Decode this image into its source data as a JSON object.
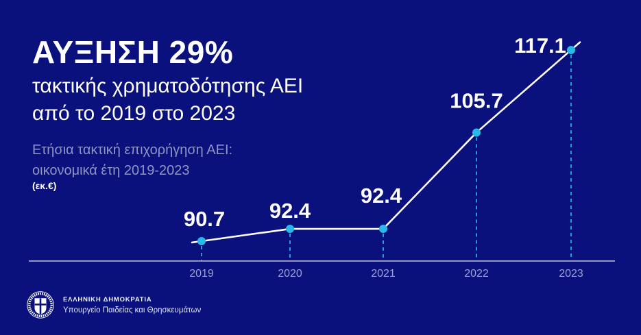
{
  "colors": {
    "background": "#0a107c",
    "accent_cyan": "#29b9e8",
    "dash_cyan": "#249fd6",
    "line_white": "#ffffff",
    "muted_text": "#8f96c4",
    "year_text": "#9ba2cc"
  },
  "header": {
    "title": "ΑΥΞΗΣΗ 29%",
    "subtitle_line1": "τακτικής χρηματοδότησης ΑΕΙ",
    "subtitle_line2": "από το 2019 στο 2023",
    "note_line1": "Ετήσια τακτική επιχορήγηση ΑΕΙ:",
    "note_line2": "οικονομικά έτη 2019-2023",
    "unit": "(εκ.€)"
  },
  "chart_data": {
    "type": "line",
    "title": "Ετήσια τακτική επιχορήγηση ΑΕΙ: οικονομικά έτη 2019-2023 (εκ.€)",
    "categories": [
      "2019",
      "2020",
      "2021",
      "2022",
      "2023"
    ],
    "values": [
      90.7,
      92.4,
      92.4,
      105.7,
      117.1
    ],
    "value_labels": [
      "90.7",
      "92.4",
      "92.4",
      "105.7",
      "117.1"
    ],
    "xlabel": "",
    "ylabel": "εκ.€",
    "ylim": [
      87,
      120
    ],
    "grid": false,
    "legend": "none",
    "marker": "circle",
    "line_color": "#ffffff",
    "point_color": "#29b9e8"
  },
  "footer": {
    "org_line1": "ΕΛΛΗΝΙΚΗ ΔΗΜΟΚΡΑΤΙΑ",
    "org_line2": "Υπουργείο Παιδείας και Θρησκευμάτων"
  }
}
